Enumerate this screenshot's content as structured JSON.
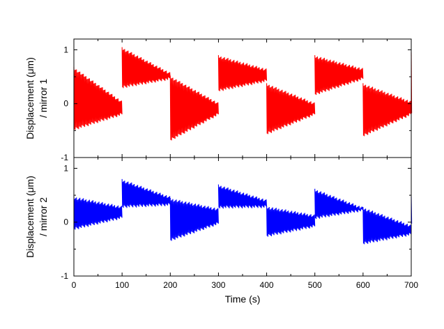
{
  "chart_data": [
    {
      "type": "line",
      "panel": "top",
      "ylabel": "Displacement (μm)",
      "ylabel_line2": "/ mirror 1",
      "xlim": [
        0,
        700
      ],
      "ylim": [
        -1,
        1.2
      ],
      "yticks": [
        -1,
        0,
        1
      ],
      "ytick_labels": [
        "-1",
        "0",
        "1"
      ],
      "color": "#ff0000",
      "segments": [
        {
          "x0": 0,
          "x1": 100,
          "upper_start": 0.68,
          "upper_end": 0.05,
          "lower_start": -0.5,
          "lower_end": -0.22
        },
        {
          "x0": 100,
          "x1": 200,
          "upper_start": 1.05,
          "upper_end": 0.58,
          "lower_start": 0.28,
          "lower_end": 0.44
        },
        {
          "x0": 200,
          "x1": 300,
          "upper_start": 0.52,
          "upper_end": 0.02,
          "lower_start": -0.7,
          "lower_end": -0.22
        },
        {
          "x0": 300,
          "x1": 400,
          "upper_start": 0.9,
          "upper_end": 0.65,
          "lower_start": 0.22,
          "lower_end": 0.4
        },
        {
          "x0": 400,
          "x1": 500,
          "upper_start": 0.38,
          "upper_end": 0.02,
          "lower_start": -0.58,
          "lower_end": -0.22
        },
        {
          "x0": 500,
          "x1": 600,
          "upper_start": 0.9,
          "upper_end": 0.66,
          "lower_start": 0.15,
          "lower_end": 0.44
        },
        {
          "x0": 600,
          "x1": 700,
          "upper_start": 0.38,
          "upper_end": 0.05,
          "lower_start": -0.62,
          "lower_end": -0.22
        },
        {
          "x0": 700,
          "x1": 701,
          "upper_start": 0.95,
          "upper_end": 0.95,
          "lower_start": -0.2,
          "lower_end": -0.2
        }
      ]
    },
    {
      "type": "line",
      "panel": "bottom",
      "xlabel": "Time (s)",
      "ylabel": "Displacement (μm)",
      "ylabel_line2": "/ mirror 2",
      "xlim": [
        0,
        700
      ],
      "ylim": [
        -1,
        1.2
      ],
      "xticks": [
        0,
        100,
        200,
        300,
        400,
        500,
        600,
        700
      ],
      "xtick_labels": [
        "0",
        "100",
        "200",
        "300",
        "400",
        "500",
        "600",
        "700"
      ],
      "yticks": [
        -1,
        0,
        1
      ],
      "ytick_labels": [
        "-1",
        "0",
        "1"
      ],
      "color": "#0000ff",
      "segments": [
        {
          "x0": 0,
          "x1": 100,
          "upper_start": 0.48,
          "upper_end": 0.3,
          "lower_start": -0.15,
          "lower_end": 0.06
        },
        {
          "x0": 100,
          "x1": 200,
          "upper_start": 0.8,
          "upper_end": 0.48,
          "lower_start": 0.26,
          "lower_end": 0.3
        },
        {
          "x0": 200,
          "x1": 300,
          "upper_start": 0.45,
          "upper_end": 0.26,
          "lower_start": -0.36,
          "lower_end": -0.05
        },
        {
          "x0": 300,
          "x1": 400,
          "upper_start": 0.7,
          "upper_end": 0.42,
          "lower_start": 0.25,
          "lower_end": 0.26
        },
        {
          "x0": 400,
          "x1": 500,
          "upper_start": 0.3,
          "upper_end": 0.14,
          "lower_start": -0.28,
          "lower_end": -0.1
        },
        {
          "x0": 500,
          "x1": 600,
          "upper_start": 0.62,
          "upper_end": 0.28,
          "lower_start": 0.05,
          "lower_end": 0.2
        },
        {
          "x0": 600,
          "x1": 700,
          "upper_start": 0.28,
          "upper_end": -0.05,
          "lower_start": -0.42,
          "lower_end": -0.25
        },
        {
          "x0": 700,
          "x1": 701,
          "upper_start": 0.48,
          "upper_end": 0.48,
          "lower_start": -0.05,
          "lower_end": -0.05
        }
      ]
    }
  ]
}
